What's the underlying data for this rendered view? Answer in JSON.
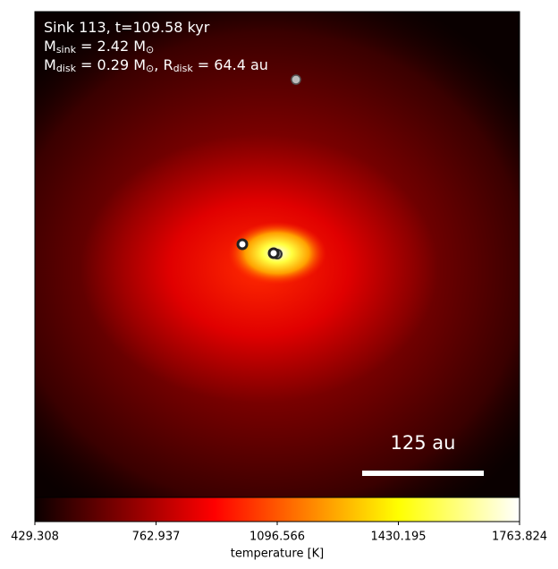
{
  "chart_data": {
    "type": "image",
    "annotations": [
      [
        {
          "text": "Sink 113, t=109.58 kyr"
        }
      ],
      [
        {
          "text": "M"
        },
        {
          "sub": "sink"
        },
        {
          "text": " = 2.42 M"
        },
        {
          "sub": "⊙"
        }
      ],
      [
        {
          "text": "M"
        },
        {
          "sub": "disk"
        },
        {
          "text": " = 0.29 M"
        },
        {
          "sub": "⊙"
        },
        {
          "text": ", R"
        },
        {
          "sub": "disk"
        },
        {
          "text": " = 64.4 au"
        }
      ]
    ],
    "scalebar_label": "125 au",
    "colorbar": {
      "label": "temperature [K]",
      "colormap": "hot",
      "clim": [
        429.308,
        1763.824
      ],
      "ticks": [
        429.308,
        762.937,
        1096.566,
        1430.195,
        1763.824
      ]
    }
  }
}
